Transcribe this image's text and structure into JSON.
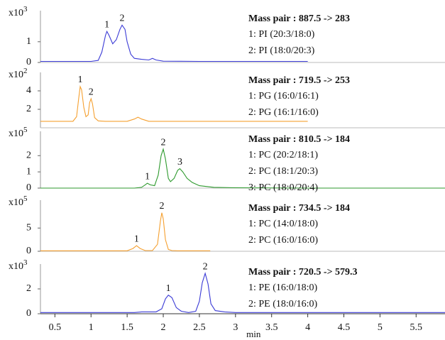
{
  "chart_data": [
    {
      "type": "line",
      "multiplier": {
        "base": "x10",
        "exponent": "3"
      },
      "title": "Mass pair : 887.5 -> 283",
      "annotations": [
        "1: PI (20:3/18:0)",
        "2: PI (18:0/20:3)"
      ],
      "xlim": [
        0.3,
        5.9
      ],
      "ylim": [
        0,
        2.5
      ],
      "yticks": [
        0,
        1
      ],
      "x": [
        0.3,
        1.0,
        1.1,
        1.15,
        1.2,
        1.22,
        1.25,
        1.3,
        1.35,
        1.4,
        1.43,
        1.47,
        1.5,
        1.55,
        1.6,
        1.7,
        1.8,
        1.85,
        1.9,
        2.0,
        2.5,
        3.0,
        4.0
      ],
      "series": [
        {
          "color": "#3b3bd6",
          "values": [
            0.05,
            0.05,
            0.1,
            0.5,
            1.3,
            1.5,
            1.3,
            0.9,
            1.1,
            1.6,
            1.8,
            1.6,
            1.0,
            0.4,
            0.2,
            0.15,
            0.12,
            0.2,
            0.12,
            0.06,
            0.05,
            0.05,
            0.05
          ]
        }
      ],
      "peak_labels": [
        {
          "text": "1",
          "x": 1.22,
          "y": 1.5
        },
        {
          "text": "2",
          "x": 1.43,
          "y": 1.8
        }
      ]
    },
    {
      "type": "line",
      "multiplier": {
        "base": "x10",
        "exponent": "2"
      },
      "title": "Mass pair : 719.5 -> 253",
      "annotations": [
        "1: PG (16:0/16:1)",
        "2: PG (16:1/16:0)"
      ],
      "xlim": [
        0.3,
        5.9
      ],
      "ylim": [
        0,
        6
      ],
      "yticks": [
        2,
        4
      ],
      "x": [
        0.3,
        0.75,
        0.8,
        0.83,
        0.85,
        0.87,
        0.9,
        0.93,
        0.96,
        0.98,
        1.0,
        1.02,
        1.05,
        1.1,
        1.2,
        1.5,
        1.6,
        1.65,
        1.7,
        1.8,
        2.2,
        3.0,
        4.0
      ],
      "series": [
        {
          "color": "#f5a030",
          "values": [
            0.7,
            0.7,
            1.2,
            3.2,
            4.46,
            4.1,
            2.2,
            1.2,
            1.4,
            2.7,
            3.15,
            2.6,
            1.1,
            0.75,
            0.7,
            0.7,
            0.95,
            1.15,
            0.95,
            0.7,
            0.7,
            0.7,
            0.7
          ]
        }
      ],
      "peak_labels": [
        {
          "text": "1",
          "x": 0.85,
          "y": 4.46
        },
        {
          "text": "2",
          "x": 1.0,
          "y": 3.15
        }
      ]
    },
    {
      "type": "line",
      "multiplier": {
        "base": "x10",
        "exponent": "5"
      },
      "title": "Mass pair : 810.5 -> 184",
      "annotations": [
        "1: PC (20:2/18:1)",
        "2: PC (18:1/20:3)",
        "3: PC (18:0/20:4)"
      ],
      "xlim": [
        0.3,
        5.9
      ],
      "ylim": [
        0,
        3.5
      ],
      "yticks": [
        0,
        1,
        2
      ],
      "x": [
        0.3,
        1.6,
        1.7,
        1.75,
        1.78,
        1.82,
        1.88,
        1.93,
        1.97,
        2.0,
        2.03,
        2.07,
        2.1,
        2.15,
        2.2,
        2.23,
        2.27,
        2.33,
        2.4,
        2.5,
        2.7,
        3.0,
        4.0,
        5.9
      ],
      "series": [
        {
          "color": "#2e9a2e",
          "values": [
            0,
            0,
            0.05,
            0.2,
            0.3,
            0.2,
            0.15,
            0.8,
            2.0,
            2.4,
            1.8,
            0.6,
            0.4,
            0.6,
            1.1,
            1.2,
            1.0,
            0.6,
            0.35,
            0.15,
            0.05,
            0.02,
            0,
            0
          ]
        }
      ],
      "peak_labels": [
        {
          "text": "1",
          "x": 1.78,
          "y": 0.3
        },
        {
          "text": "2",
          "x": 2.0,
          "y": 2.4
        },
        {
          "text": "3",
          "x": 2.23,
          "y": 1.2
        }
      ]
    },
    {
      "type": "line",
      "multiplier": {
        "base": "x10",
        "exponent": "5"
      },
      "title": "Mass pair : 734.5 -> 184",
      "annotations": [
        "1: PC (14:0/18:0)",
        "2: PC (16:0/16:0)"
      ],
      "xlim": [
        0.3,
        5.9
      ],
      "ylim": [
        0,
        11
      ],
      "yticks": [
        0,
        5
      ],
      "x": [
        0.3,
        1.5,
        1.58,
        1.63,
        1.68,
        1.75,
        1.85,
        1.92,
        1.96,
        1.98,
        2.0,
        2.03,
        2.07,
        2.12,
        2.2,
        2.65
      ],
      "series": [
        {
          "color": "#f5a030",
          "values": [
            0.1,
            0.1,
            0.6,
            1.2,
            0.6,
            0.15,
            0.15,
            1.5,
            6.5,
            8.3,
            7.0,
            2.5,
            0.4,
            0.15,
            0.1,
            0.1
          ]
        }
      ],
      "peak_labels": [
        {
          "text": "1",
          "x": 1.63,
          "y": 1.2
        },
        {
          "text": "2",
          "x": 1.98,
          "y": 8.3
        }
      ]
    },
    {
      "type": "line",
      "multiplier": {
        "base": "x10",
        "exponent": "3"
      },
      "title": "Mass pair : 720.5 -> 579.3",
      "annotations": [
        "1: PE (16:0/18:0)",
        "2: PE (18:0/16:0)"
      ],
      "xlim": [
        0.3,
        5.9
      ],
      "ylim": [
        0,
        4
      ],
      "yticks": [
        0,
        2
      ],
      "xticks": [
        0.5,
        1,
        1.5,
        2,
        2.5,
        3,
        3.5,
        4,
        4.5,
        5,
        5.5
      ],
      "xlabel": "min",
      "x": [
        0.3,
        1.6,
        1.7,
        1.9,
        1.98,
        2.03,
        2.07,
        2.12,
        2.18,
        2.25,
        2.35,
        2.45,
        2.5,
        2.54,
        2.58,
        2.62,
        2.66,
        2.72,
        2.85,
        3.0,
        4.0,
        5.9
      ],
      "series": [
        {
          "color": "#3b3bd6",
          "values": [
            0.1,
            0.1,
            0.15,
            0.15,
            0.4,
            1.2,
            1.5,
            1.3,
            0.5,
            0.2,
            0.1,
            0.2,
            1.0,
            2.5,
            3.25,
            2.4,
            0.8,
            0.25,
            0.15,
            0.1,
            0.1,
            0.1
          ]
        }
      ],
      "peak_labels": [
        {
          "text": "1",
          "x": 2.07,
          "y": 1.5
        },
        {
          "text": "2",
          "x": 2.58,
          "y": 3.25
        }
      ]
    }
  ]
}
